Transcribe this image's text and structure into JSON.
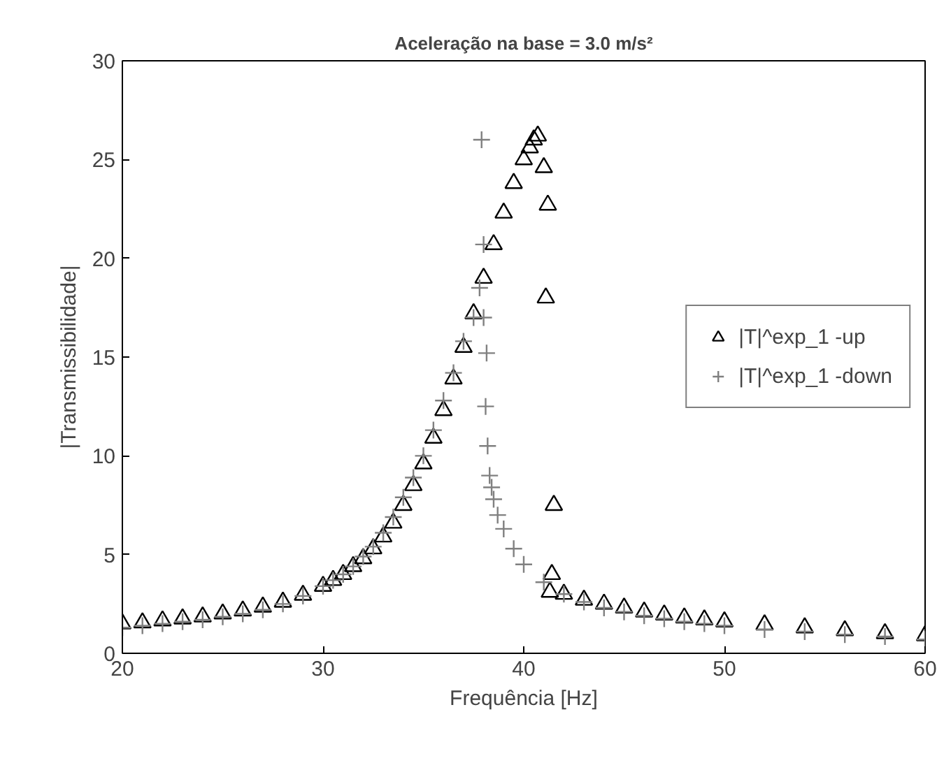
{
  "chart_data": {
    "type": "scatter",
    "title": "Aceleração na base = 3.0 m/s²",
    "xlabel": "Frequência [Hz]",
    "ylabel": "|Transmissibilidade|",
    "xlim": [
      20,
      60
    ],
    "ylim": [
      0,
      30
    ],
    "xticks": [
      20,
      30,
      40,
      50,
      60
    ],
    "yticks": [
      0,
      5,
      10,
      15,
      20,
      25,
      30
    ],
    "grid": false,
    "legend": "right",
    "series": [
      {
        "name": "|T|^exp_1 -up",
        "color": "#000000",
        "marker": "triangle",
        "x": [
          20,
          21,
          22,
          23,
          24,
          25,
          26,
          27,
          28,
          29,
          30,
          30.5,
          31,
          31.5,
          32,
          32.5,
          33,
          33.5,
          34,
          34.5,
          35,
          35.5,
          36,
          36.5,
          37,
          37.5,
          38,
          38.5,
          39,
          39.5,
          40,
          40.3,
          40.5,
          40.7,
          41.0,
          41.2,
          41.1,
          41.5,
          41.4,
          41.3,
          42,
          43,
          44,
          45,
          46,
          47,
          48,
          49,
          50,
          52,
          54,
          56,
          58,
          60
        ],
        "values": [
          1.5,
          1.55,
          1.65,
          1.75,
          1.85,
          2.0,
          2.15,
          2.35,
          2.6,
          2.95,
          3.4,
          3.7,
          4.0,
          4.4,
          4.8,
          5.3,
          5.9,
          6.6,
          7.5,
          8.5,
          9.6,
          10.9,
          12.3,
          13.9,
          15.5,
          17.2,
          19.0,
          20.7,
          22.3,
          23.8,
          25.0,
          25.6,
          26.0,
          26.2,
          24.6,
          22.7,
          18.0,
          7.5,
          4.0,
          3.1,
          3.0,
          2.7,
          2.5,
          2.3,
          2.1,
          1.95,
          1.8,
          1.7,
          1.6,
          1.45,
          1.3,
          1.15,
          1.0,
          0.9
        ]
      },
      {
        "name": "|T|^exp_1 -down",
        "color": "#808080",
        "marker": "cross",
        "x": [
          60,
          58,
          56,
          54,
          52,
          50,
          49,
          48,
          47,
          46,
          45,
          44,
          43,
          42,
          41,
          40,
          39.5,
          39,
          38.7,
          38.5,
          38.4,
          38.3,
          38.2,
          38.1,
          38.15,
          38.0,
          38.0,
          37.9,
          37.8,
          37.5,
          37,
          36.5,
          36,
          35.5,
          35,
          34.5,
          34,
          33.5,
          33,
          32.5,
          32,
          31.5,
          31,
          30.5,
          30,
          29,
          28,
          27,
          26,
          25,
          24,
          23,
          22,
          21,
          20
        ],
        "values": [
          0.7,
          0.85,
          0.95,
          1.1,
          1.2,
          1.4,
          1.5,
          1.6,
          1.75,
          1.9,
          2.1,
          2.3,
          2.6,
          3.0,
          3.6,
          4.5,
          5.3,
          6.3,
          7.0,
          7.8,
          8.4,
          9.0,
          10.5,
          12.5,
          15.2,
          17.0,
          20.7,
          26.0,
          18.5,
          17.0,
          15.8,
          14.2,
          12.8,
          11.3,
          10.0,
          8.9,
          7.9,
          6.9,
          6.1,
          5.4,
          4.9,
          4.4,
          4.0,
          3.7,
          3.4,
          2.9,
          2.5,
          2.2,
          2.0,
          1.85,
          1.7,
          1.6,
          1.5,
          1.4,
          1.3
        ]
      }
    ]
  }
}
